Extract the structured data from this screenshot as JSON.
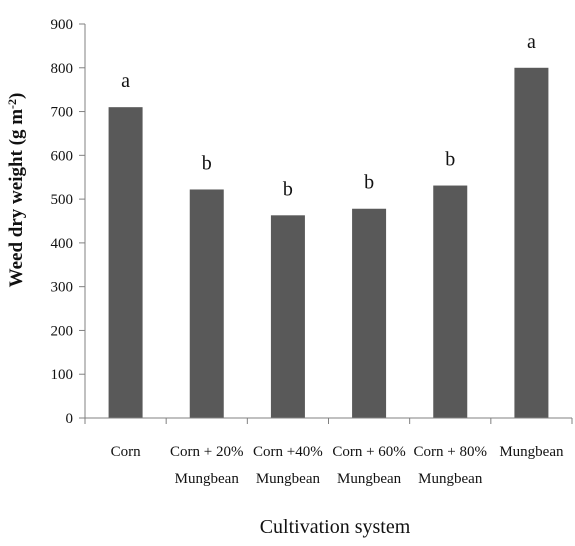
{
  "chart_data": {
    "type": "bar",
    "categories": [
      [
        "Corn"
      ],
      [
        "Corn + 20%",
        "Mungbean"
      ],
      [
        "Corn +40%",
        "Mungbean"
      ],
      [
        "Corn + 60%",
        "Mungbean"
      ],
      [
        "Corn + 80%",
        "Mungbean"
      ],
      [
        "Mungbean"
      ]
    ],
    "values": [
      710,
      522,
      463,
      478,
      531,
      800
    ],
    "significance": [
      "a",
      "b",
      "b",
      "b",
      "b",
      "a"
    ],
    "xlabel": "Cultivation system",
    "ylabel": {
      "main": "Weed dry weight (g m",
      "sup": "-2",
      "end": ")"
    },
    "ylim": [
      0,
      900
    ],
    "yticks": [
      0,
      100,
      200,
      300,
      400,
      500,
      600,
      700,
      800,
      900
    ],
    "grid": false,
    "bar_color": "#595959",
    "axis_color": "#808080"
  }
}
